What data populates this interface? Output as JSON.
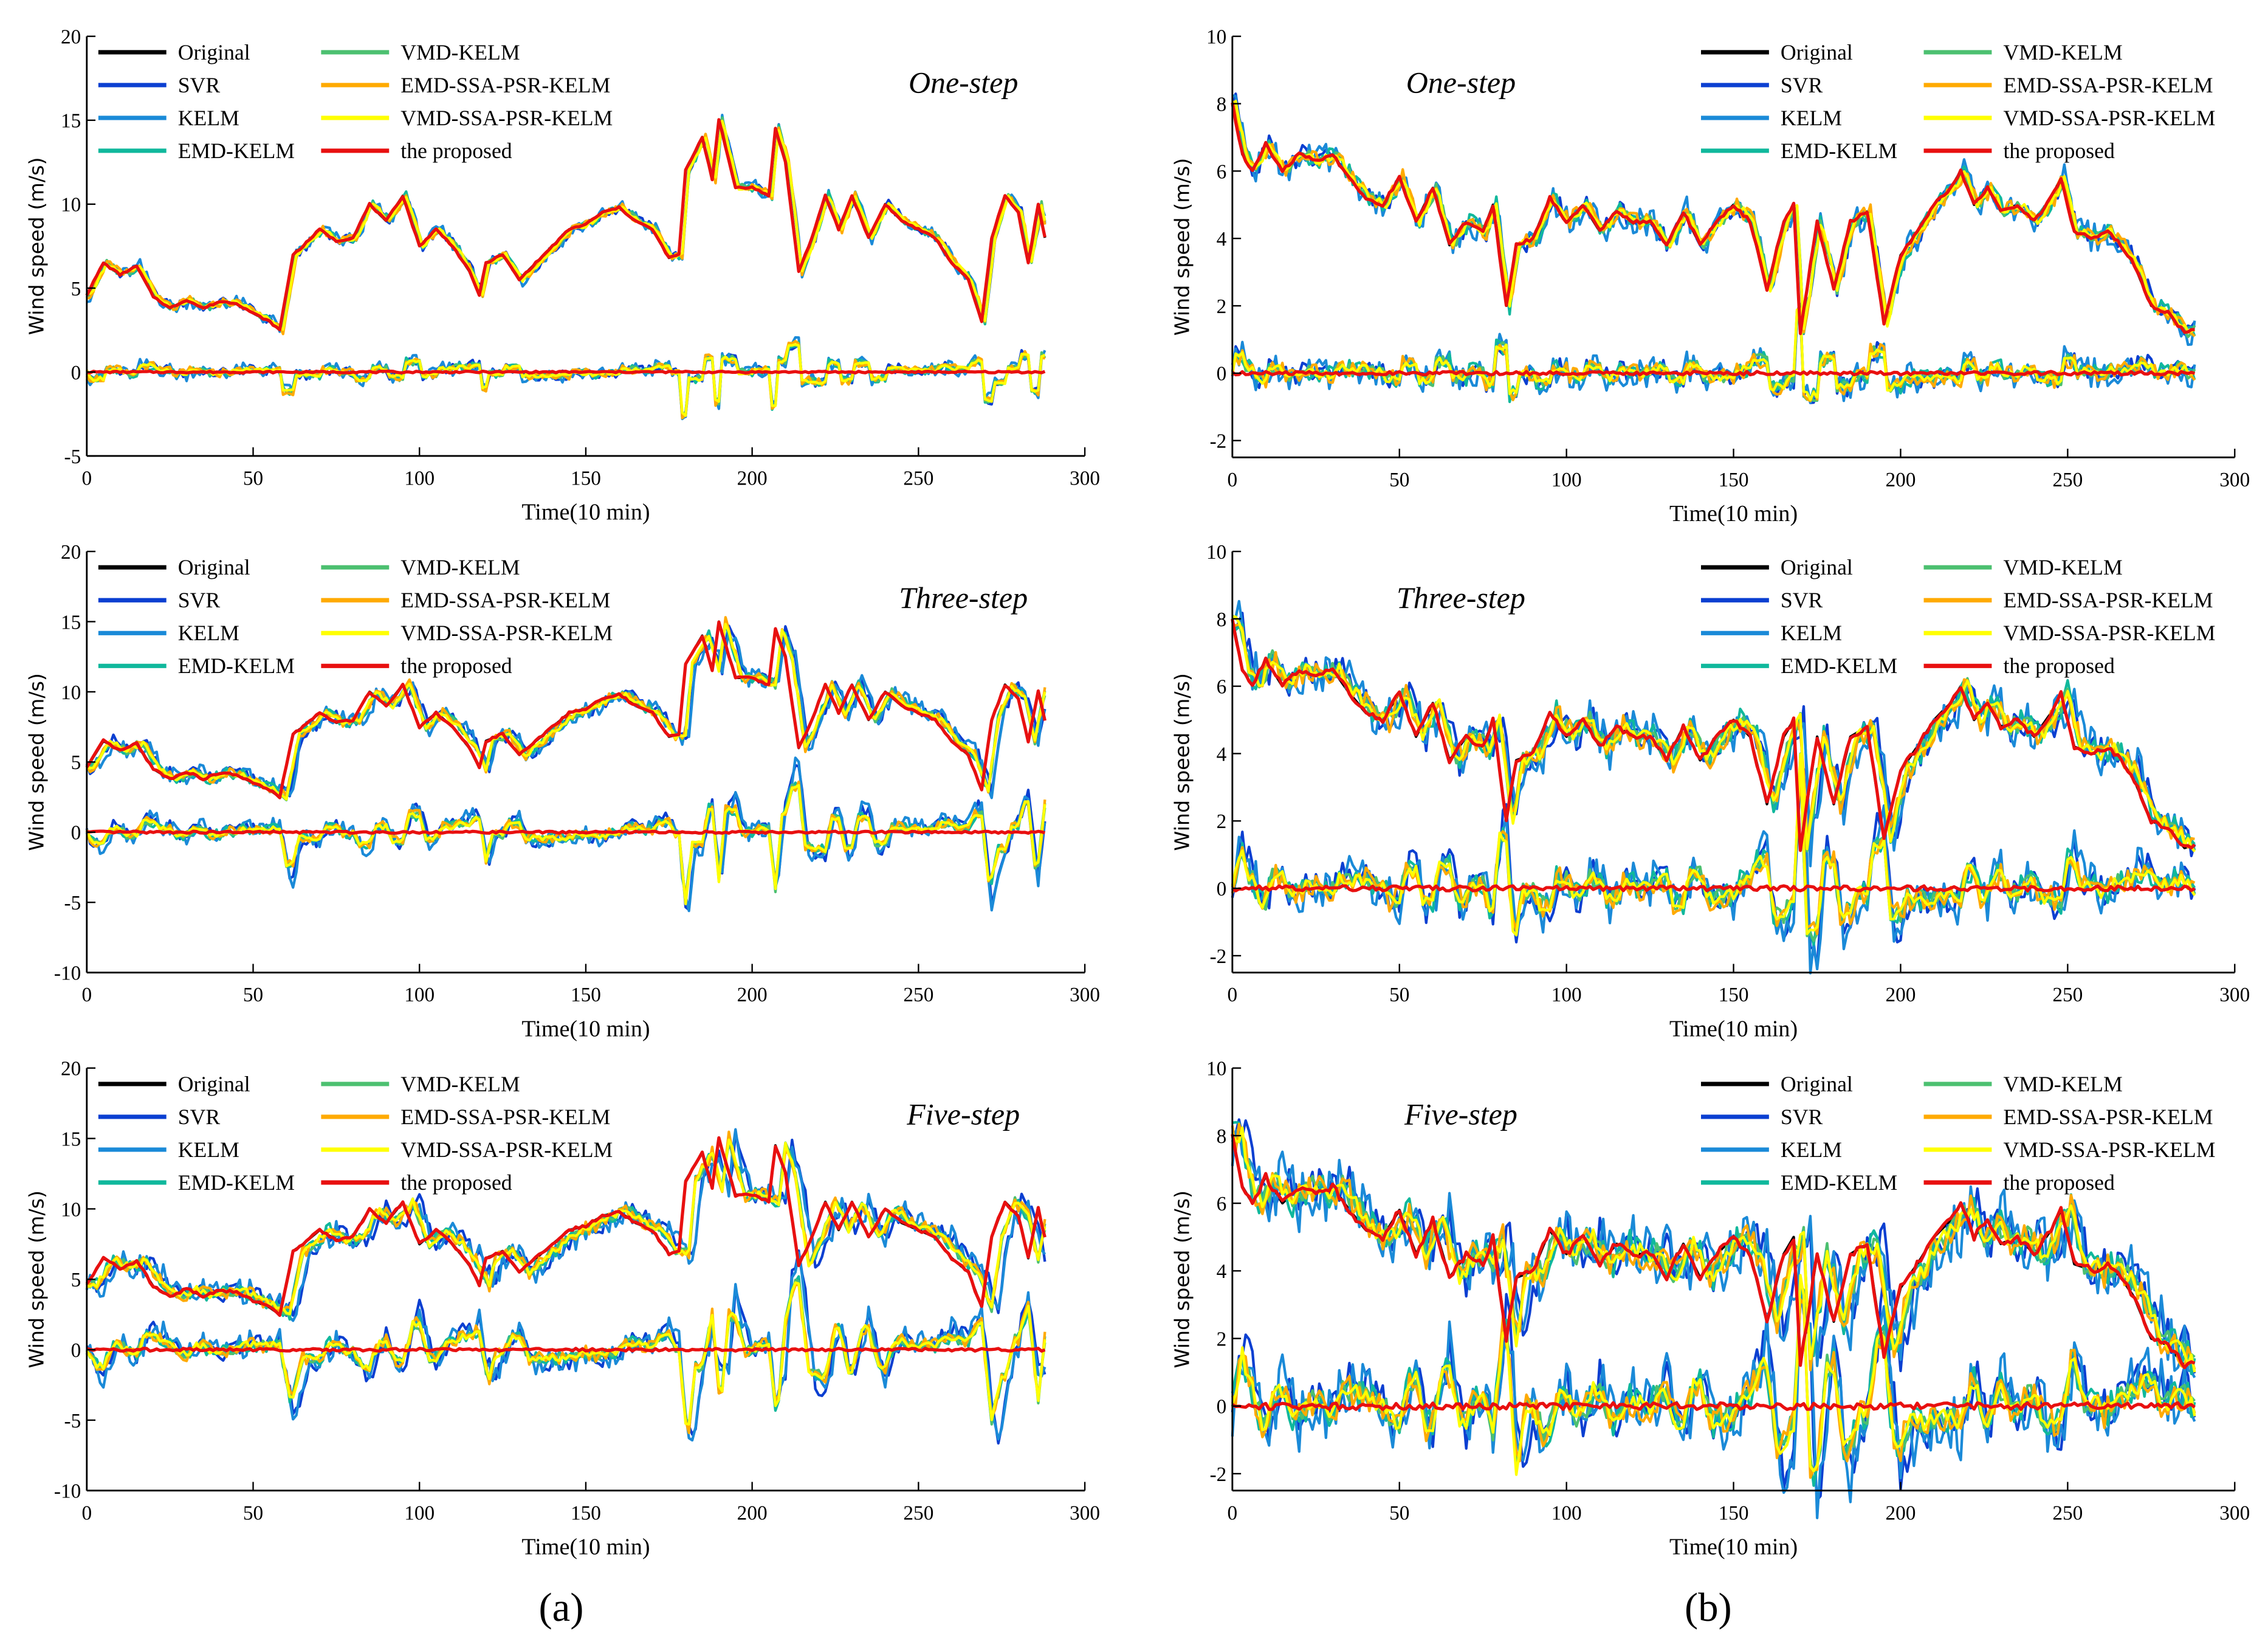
{
  "chart_data": {
    "type": "line",
    "xlabel": "Time(10 min)",
    "ylabel": "Wind speed (m/s)",
    "xlim": [
      0,
      300
    ],
    "xticks": [
      0,
      50,
      100,
      150,
      200,
      250,
      300
    ],
    "legend": {
      "placement": "top-left",
      "columns": 2
    },
    "series_styles": [
      {
        "name": "Original",
        "color": "#000000",
        "approx_error_scale": 0
      },
      {
        "name": "SVR",
        "color": "#0b3fd1",
        "approx_error_scale": 0.6
      },
      {
        "name": "KELM",
        "color": "#1a8ad8",
        "approx_error_scale": 0.9
      },
      {
        "name": "EMD-KELM",
        "color": "#10b89c",
        "approx_error_scale": 0.5
      },
      {
        "name": "VMD-KELM",
        "color": "#4cc070",
        "approx_error_scale": 0.35
      },
      {
        "name": "EMD-SSA-PSR-KELM",
        "color": "#ffaa00",
        "approx_error_scale": 0.5
      },
      {
        "name": "VMD-SSA-PSR-KELM",
        "color": "#ffff00",
        "approx_error_scale": 0.25
      },
      {
        "name": "the proposed",
        "color": "#e81010",
        "approx_error_scale": 0.1
      }
    ],
    "datasets": {
      "a": {
        "x": [
          0,
          5,
          10,
          15,
          20,
          25,
          30,
          35,
          40,
          45,
          50,
          55,
          58,
          62,
          65,
          70,
          75,
          80,
          85,
          90,
          95,
          100,
          105,
          110,
          115,
          118,
          120,
          125,
          130,
          135,
          140,
          145,
          150,
          155,
          160,
          165,
          170,
          175,
          178,
          180,
          185,
          188,
          190,
          195,
          200,
          205,
          207,
          210,
          214,
          218,
          222,
          226,
          230,
          235,
          240,
          245,
          250,
          255,
          260,
          265,
          269,
          272,
          276,
          280,
          283,
          286,
          288
        ],
        "original": [
          4.6,
          6.5,
          5.8,
          6.3,
          4.5,
          3.8,
          4.3,
          3.8,
          4.2,
          4.1,
          3.5,
          3.0,
          2.5,
          7,
          7.5,
          8.5,
          7.8,
          8,
          10,
          9,
          10.5,
          7.5,
          8.5,
          7.5,
          6,
          4.6,
          6.5,
          7,
          5.5,
          6.5,
          7.5,
          8.5,
          8.8,
          9.5,
          9.8,
          9,
          8.5,
          6.8,
          7,
          12,
          14,
          11.5,
          15,
          11,
          11,
          10.5,
          14.5,
          12.5,
          6,
          8,
          10.5,
          8.5,
          10.5,
          8,
          10,
          9,
          8.5,
          8,
          6.5,
          5.5,
          3,
          8,
          10.5,
          9.5,
          6.5,
          10,
          8
        ]
      },
      "b": {
        "x": [
          0,
          3,
          6,
          10,
          15,
          20,
          25,
          30,
          35,
          40,
          45,
          50,
          55,
          60,
          65,
          70,
          75,
          78,
          82,
          85,
          90,
          95,
          100,
          105,
          110,
          115,
          120,
          125,
          130,
          135,
          140,
          145,
          150,
          155,
          160,
          165,
          168,
          170,
          175,
          180,
          185,
          190,
          195,
          200,
          205,
          210,
          215,
          218,
          222,
          226,
          230,
          235,
          240,
          245,
          248,
          252,
          258,
          262,
          266,
          270,
          275,
          280,
          285,
          288
        ],
        "original": [
          8,
          6.5,
          6,
          6.8,
          6,
          6.5,
          6.3,
          6.5,
          5.8,
          5.2,
          5,
          5.8,
          4.5,
          5.5,
          3.8,
          4.5,
          4.2,
          5,
          2,
          3.8,
          4,
          5.2,
          4.5,
          5,
          4.2,
          4.8,
          4.5,
          4.5,
          3.8,
          4.8,
          3.8,
          4.5,
          5,
          4.5,
          2.5,
          4.5,
          5,
          1.2,
          4.5,
          2.5,
          4.5,
          4.8,
          1.5,
          3.5,
          4.2,
          5,
          5.5,
          6,
          5,
          5.5,
          4.8,
          5,
          4.5,
          5.2,
          5.8,
          4.2,
          4,
          4.2,
          3.8,
          3.2,
          2,
          1.8,
          1.2,
          1.3
        ]
      }
    },
    "panels": [
      {
        "id": "a1",
        "dataset": "a",
        "title": "One-step",
        "steps": 1,
        "ylim": [
          -5,
          20
        ],
        "yticks": [
          -5,
          0,
          5,
          10,
          15,
          20
        ]
      },
      {
        "id": "a3",
        "dataset": "a",
        "title": "Three-step",
        "steps": 3,
        "ylim": [
          -10,
          20
        ],
        "yticks": [
          -10,
          -5,
          0,
          5,
          10,
          15,
          20
        ]
      },
      {
        "id": "a5",
        "dataset": "a",
        "title": "Five-step",
        "steps": 5,
        "ylim": [
          -10,
          20
        ],
        "yticks": [
          -10,
          -5,
          0,
          5,
          10,
          15,
          20
        ]
      },
      {
        "id": "b1",
        "dataset": "b",
        "title": "One-step",
        "steps": 1,
        "ylim": [
          -2.5,
          10
        ],
        "yticks": [
          -2,
          0,
          2,
          4,
          6,
          8,
          10
        ]
      },
      {
        "id": "b3",
        "dataset": "b",
        "title": "Three-step",
        "steps": 3,
        "ylim": [
          -2.5,
          10
        ],
        "yticks": [
          -2,
          0,
          2,
          4,
          6,
          8,
          10
        ]
      },
      {
        "id": "b5",
        "dataset": "b",
        "title": "Five-step",
        "steps": 5,
        "ylim": [
          -2.5,
          10
        ],
        "yticks": [
          -2,
          0,
          2,
          4,
          6,
          8,
          10
        ]
      }
    ],
    "subfigure_labels": [
      "(a)",
      "(b)"
    ]
  }
}
